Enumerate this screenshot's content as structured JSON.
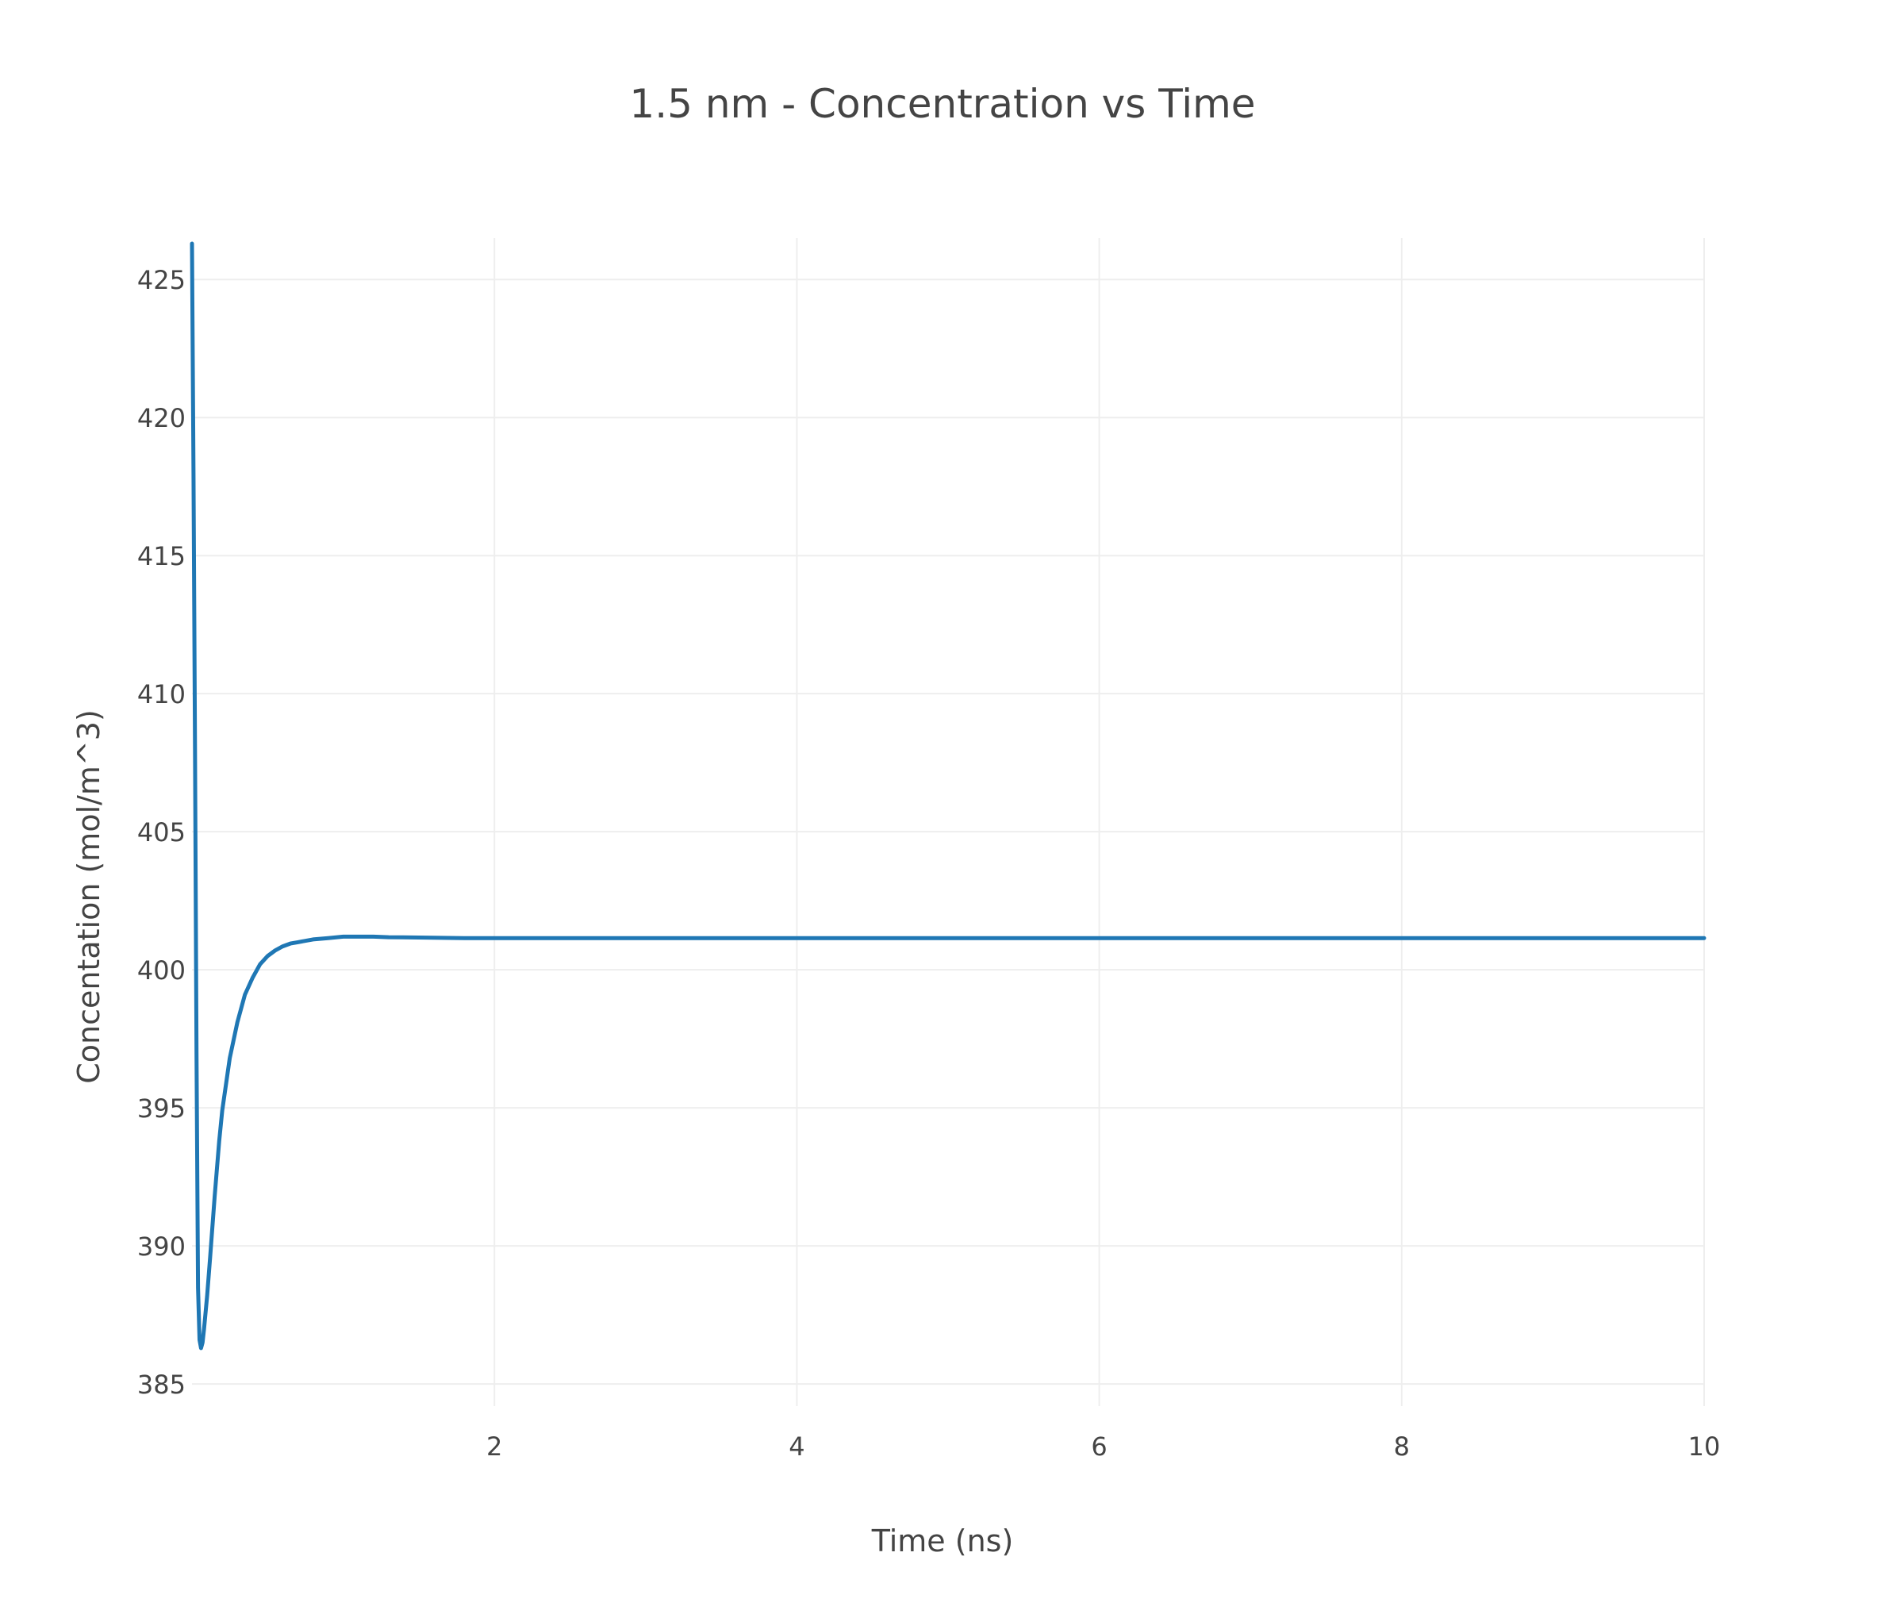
{
  "chart_data": {
    "type": "line",
    "title": "1.5 nm - Concentration vs Time",
    "xlabel": "Time (ns)",
    "ylabel": "Concentation (mol/m^3)",
    "xlim": [
      0,
      10
    ],
    "ylim": [
      384.2,
      426.5
    ],
    "xticks": [
      2,
      4,
      6,
      8,
      10
    ],
    "xtick_labels": [
      "2",
      "4",
      "6",
      "8",
      "10"
    ],
    "yticks": [
      385,
      390,
      395,
      400,
      405,
      410,
      415,
      420,
      425
    ],
    "ytick_labels": [
      "385",
      "390",
      "395",
      "400",
      "405",
      "410",
      "415",
      "420",
      "425"
    ],
    "grid": true,
    "legend": "none",
    "series_color": "#1f77b4",
    "series": [
      {
        "x": [
          0.0,
          0.01,
          0.02,
          0.03,
          0.04,
          0.05,
          0.06,
          0.07,
          0.08,
          0.1,
          0.12,
          0.15,
          0.18,
          0.2,
          0.25,
          0.3,
          0.35,
          0.4,
          0.45,
          0.5,
          0.55,
          0.6,
          0.65,
          0.7,
          0.8,
          0.9,
          1.0,
          1.1,
          1.2,
          1.3,
          1.5,
          1.8,
          2.0,
          3.0,
          4.0,
          5.0,
          6.0,
          7.0,
          8.0,
          9.0,
          10.0
        ],
        "y": [
          426.3,
          418.0,
          408.0,
          397.0,
          388.5,
          386.6,
          386.3,
          386.5,
          387.0,
          388.2,
          389.6,
          391.8,
          393.8,
          394.9,
          396.8,
          398.1,
          399.1,
          399.7,
          400.2,
          400.5,
          400.7,
          400.85,
          400.95,
          401.0,
          401.1,
          401.15,
          401.2,
          401.2,
          401.2,
          401.18,
          401.17,
          401.15,
          401.15,
          401.15,
          401.15,
          401.15,
          401.15,
          401.15,
          401.15,
          401.15,
          401.15
        ]
      }
    ]
  }
}
